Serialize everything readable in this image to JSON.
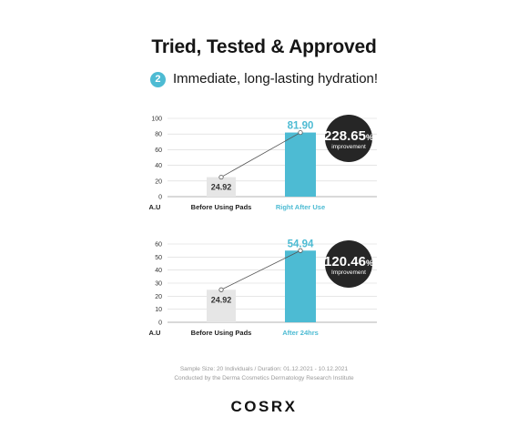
{
  "title": "Tried, Tested & Approved",
  "subtitle": {
    "number": "2",
    "text": "Immediate, long-lasting hydration!"
  },
  "colors": {
    "accent": "#4dbbd3",
    "before_bar": "#e6e6e6",
    "badge": "#262626"
  },
  "chart_data": [
    {
      "type": "bar",
      "ylabel": "A.U",
      "categories": [
        "Before Using Pads",
        "Right After Use"
      ],
      "values": [
        24.92,
        81.9
      ],
      "value_labels": [
        "24.92",
        "81.90"
      ],
      "ylim": [
        0,
        100
      ],
      "yticks": [
        0,
        20,
        40,
        60,
        80,
        100
      ],
      "grid": true,
      "badge": {
        "value": "228.65",
        "unit": "%",
        "label": "improvement"
      }
    },
    {
      "type": "bar",
      "ylabel": "A.U",
      "categories": [
        "Before Using Pads",
        "After 24hrs"
      ],
      "values": [
        24.92,
        54.94
      ],
      "value_labels": [
        "24.92",
        "54.94"
      ],
      "ylim": [
        0,
        60
      ],
      "yticks": [
        0,
        10,
        20,
        30,
        40,
        50,
        60
      ],
      "grid": true,
      "badge": {
        "value": "120.46",
        "unit": "%",
        "label": "Improvement"
      }
    }
  ],
  "footnotes": [
    "Sample Size: 20 Individuals  /  Duration: 01.12.2021 - 10.12.2021",
    "Conducted by the Derma Cosmetics Dermatology Research Institute"
  ],
  "brand": "COSRX"
}
